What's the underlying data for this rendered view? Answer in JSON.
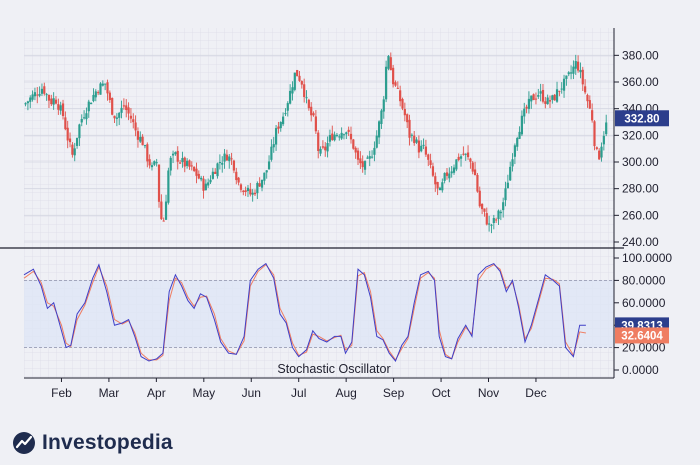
{
  "chart_data": [
    {
      "type": "candlestick",
      "title": "",
      "x_ticks": [
        "Feb",
        "Mar",
        "Apr",
        "May",
        "Jun",
        "Jul",
        "Aug",
        "Sep",
        "Oct",
        "Nov",
        "Dec"
      ],
      "y_ticks": [
        "380.00",
        "360.00",
        "340.00",
        "320.00",
        "300.00",
        "280.00",
        "260.00",
        "240.00"
      ],
      "ylim": [
        240,
        390
      ],
      "current_price_label": "332.80",
      "up_color": "#2c9d8f",
      "down_color": "#e0504a",
      "grid": true,
      "close_path": [
        [
          0,
          343
        ],
        [
          6,
          350
        ],
        [
          12,
          356
        ],
        [
          17,
          345
        ],
        [
          20,
          348
        ],
        [
          25,
          335
        ],
        [
          28,
          318
        ],
        [
          31,
          305
        ],
        [
          36,
          330
        ],
        [
          41,
          343
        ],
        [
          47,
          355
        ],
        [
          52,
          359
        ],
        [
          56,
          340
        ],
        [
          59,
          333
        ],
        [
          64,
          342
        ],
        [
          69,
          332
        ],
        [
          72,
          322
        ],
        [
          76,
          315
        ],
        [
          79,
          303
        ],
        [
          82,
          295
        ],
        [
          85,
          300
        ],
        [
          87,
          262
        ],
        [
          89,
          253
        ],
        [
          90,
          260
        ],
        [
          93,
          300
        ],
        [
          97,
          305
        ],
        [
          101,
          300
        ],
        [
          106,
          296
        ],
        [
          111,
          290
        ],
        [
          116,
          280
        ],
        [
          120,
          290
        ],
        [
          125,
          300
        ],
        [
          130,
          305
        ],
        [
          134,
          300
        ],
        [
          137,
          285
        ],
        [
          141,
          280
        ],
        [
          146,
          275
        ],
        [
          150,
          283
        ],
        [
          155,
          292
        ],
        [
          159,
          310
        ],
        [
          162,
          325
        ],
        [
          166,
          335
        ],
        [
          170,
          350
        ],
        [
          174,
          368
        ],
        [
          178,
          360
        ],
        [
          182,
          340
        ],
        [
          186,
          330
        ],
        [
          189,
          305
        ],
        [
          193,
          310
        ],
        [
          197,
          320
        ],
        [
          202,
          322
        ],
        [
          206,
          325
        ],
        [
          211,
          312
        ],
        [
          214,
          300
        ],
        [
          218,
          296
        ],
        [
          222,
          303
        ],
        [
          226,
          320
        ],
        [
          230,
          343
        ],
        [
          233,
          385
        ],
        [
          236,
          362
        ],
        [
          240,
          350
        ],
        [
          244,
          335
        ],
        [
          247,
          320
        ],
        [
          250,
          318
        ],
        [
          253,
          310
        ],
        [
          256,
          310
        ],
        [
          259,
          300
        ],
        [
          263,
          285
        ],
        [
          266,
          275
        ],
        [
          270,
          290
        ],
        [
          274,
          295
        ],
        [
          278,
          303
        ],
        [
          282,
          306
        ],
        [
          286,
          300
        ],
        [
          289,
          290
        ],
        [
          292,
          267
        ],
        [
          295,
          260
        ],
        [
          298,
          252
        ],
        [
          302,
          256
        ],
        [
          306,
          265
        ],
        [
          309,
          280
        ],
        [
          312,
          300
        ],
        [
          315,
          318
        ],
        [
          320,
          335
        ],
        [
          325,
          347
        ],
        [
          330,
          352
        ],
        [
          335,
          345
        ],
        [
          339,
          347
        ],
        [
          343,
          355
        ],
        [
          347,
          360
        ],
        [
          350,
          366
        ],
        [
          354,
          375
        ],
        [
          356,
          368
        ],
        [
          360,
          350
        ],
        [
          364,
          333
        ],
        [
          366,
          310
        ],
        [
          368,
          302
        ],
        [
          371,
          320
        ],
        [
          374,
          332
        ]
      ]
    },
    {
      "type": "line",
      "title": "Stochastic Oscillator",
      "y_ticks": [
        "100.0000",
        "80.0000",
        "60.0000",
        "40.0000",
        "20.0000",
        "0.0000"
      ],
      "ylim": [
        0,
        100
      ],
      "overbought": 80,
      "oversold": 20,
      "series": [
        {
          "label": "39.8313",
          "color": "#3f3fc7",
          "values": [
            [
              0,
              85
            ],
            [
              6,
              90
            ],
            [
              11,
              75
            ],
            [
              15,
              55
            ],
            [
              19,
              60
            ],
            [
              24,
              35
            ],
            [
              27,
              20
            ],
            [
              30,
              22
            ],
            [
              34,
              50
            ],
            [
              39,
              60
            ],
            [
              44,
              82
            ],
            [
              48,
              94
            ],
            [
              53,
              70
            ],
            [
              58,
              40
            ],
            [
              63,
              42
            ],
            [
              67,
              45
            ],
            [
              71,
              30
            ],
            [
              75,
              12
            ],
            [
              80,
              8
            ],
            [
              85,
              10
            ],
            [
              89,
              15
            ],
            [
              93,
              70
            ],
            [
              97,
              85
            ],
            [
              101,
              75
            ],
            [
              105,
              62
            ],
            [
              109,
              55
            ],
            [
              113,
              68
            ],
            [
              117,
              65
            ],
            [
              122,
              45
            ],
            [
              126,
              25
            ],
            [
              131,
              15
            ],
            [
              136,
              14
            ],
            [
              141,
              30
            ],
            [
              145,
              80
            ],
            [
              150,
              90
            ],
            [
              155,
              95
            ],
            [
              160,
              82
            ],
            [
              164,
              50
            ],
            [
              168,
              42
            ],
            [
              172,
              20
            ],
            [
              176,
              12
            ],
            [
              181,
              18
            ],
            [
              185,
              35
            ],
            [
              189,
              28
            ],
            [
              194,
              25
            ],
            [
              199,
              30
            ],
            [
              203,
              30
            ],
            [
              206,
              15
            ],
            [
              210,
              25
            ],
            [
              214,
              90
            ],
            [
              218,
              85
            ],
            [
              222,
              65
            ],
            [
              226,
              30
            ],
            [
              230,
              27
            ],
            [
              234,
              15
            ],
            [
              238,
              8
            ],
            [
              242,
              22
            ],
            [
              246,
              30
            ],
            [
              250,
              60
            ],
            [
              254,
              85
            ],
            [
              259,
              88
            ],
            [
              263,
              80
            ],
            [
              266,
              30
            ],
            [
              270,
              12
            ],
            [
              274,
              10
            ],
            [
              278,
              28
            ],
            [
              283,
              40
            ],
            [
              287,
              30
            ],
            [
              291,
              85
            ],
            [
              296,
              92
            ],
            [
              301,
              95
            ],
            [
              305,
              88
            ],
            [
              309,
              70
            ],
            [
              313,
              80
            ],
            [
              317,
              55
            ],
            [
              321,
              25
            ],
            [
              325,
              40
            ],
            [
              330,
              65
            ],
            [
              334,
              85
            ],
            [
              339,
              80
            ],
            [
              343,
              75
            ],
            [
              347,
              20
            ],
            [
              352,
              12
            ],
            [
              356,
              40
            ],
            [
              360,
              40
            ]
          ]
        },
        {
          "label": "32.6404",
          "color": "#ef7d62",
          "values": [
            [
              0,
              82
            ],
            [
              6,
              88
            ],
            [
              11,
              78
            ],
            [
              15,
              60
            ],
            [
              19,
              57
            ],
            [
              24,
              40
            ],
            [
              27,
              24
            ],
            [
              30,
              21
            ],
            [
              34,
              45
            ],
            [
              39,
              58
            ],
            [
              44,
              78
            ],
            [
              48,
              92
            ],
            [
              53,
              75
            ],
            [
              58,
              45
            ],
            [
              63,
              41
            ],
            [
              67,
              44
            ],
            [
              71,
              33
            ],
            [
              75,
              15
            ],
            [
              80,
              9
            ],
            [
              85,
              9
            ],
            [
              89,
              13
            ],
            [
              93,
              62
            ],
            [
              97,
              82
            ],
            [
              101,
              78
            ],
            [
              105,
              65
            ],
            [
              109,
              57
            ],
            [
              113,
              65
            ],
            [
              117,
              66
            ],
            [
              122,
              50
            ],
            [
              126,
              28
            ],
            [
              131,
              17
            ],
            [
              136,
              14
            ],
            [
              141,
              26
            ],
            [
              145,
              75
            ],
            [
              150,
              88
            ],
            [
              155,
              94
            ],
            [
              160,
              85
            ],
            [
              164,
              55
            ],
            [
              168,
              44
            ],
            [
              172,
              24
            ],
            [
              176,
              13
            ],
            [
              181,
              16
            ],
            [
              185,
              32
            ],
            [
              189,
              30
            ],
            [
              194,
              26
            ],
            [
              199,
              29
            ],
            [
              203,
              31
            ],
            [
              206,
              18
            ],
            [
              210,
              22
            ],
            [
              214,
              84
            ],
            [
              218,
              87
            ],
            [
              222,
              70
            ],
            [
              226,
              35
            ],
            [
              230,
              28
            ],
            [
              234,
              17
            ],
            [
              238,
              9
            ],
            [
              242,
              19
            ],
            [
              246,
              28
            ],
            [
              250,
              55
            ],
            [
              254,
              82
            ],
            [
              259,
              87
            ],
            [
              263,
              82
            ],
            [
              266,
              36
            ],
            [
              270,
              14
            ],
            [
              274,
              10
            ],
            [
              278,
              25
            ],
            [
              283,
              38
            ],
            [
              287,
              32
            ],
            [
              291,
              80
            ],
            [
              296,
              90
            ],
            [
              301,
              94
            ],
            [
              305,
              90
            ],
            [
              309,
              73
            ],
            [
              313,
              78
            ],
            [
              317,
              58
            ],
            [
              321,
              28
            ],
            [
              325,
              37
            ],
            [
              330,
              62
            ],
            [
              334,
              82
            ],
            [
              339,
              81
            ],
            [
              343,
              77
            ],
            [
              347,
              25
            ],
            [
              352,
              13
            ],
            [
              356,
              34
            ],
            [
              360,
              33
            ]
          ]
        }
      ]
    }
  ],
  "brand": {
    "name": "Investopedia",
    "color": "#1f2c4e"
  },
  "x_axis_days": 378
}
